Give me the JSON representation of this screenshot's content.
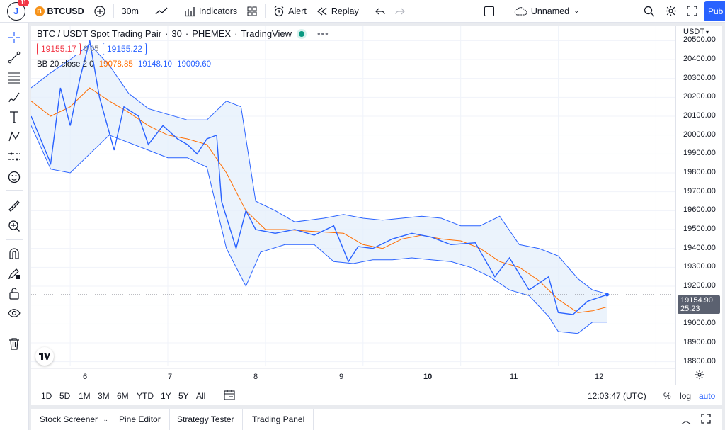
{
  "topbar": {
    "notification_count": "11",
    "avatar_letter": "J",
    "symbol": "BTCUSD",
    "coin_glyph": "B",
    "interval": "30m",
    "indicators_label": "Indicators",
    "alert_label": "Alert",
    "replay_label": "Replay",
    "layout_name": "Unnamed",
    "publish_label": "Pub"
  },
  "legend": {
    "title": "BTC / USDT Spot Trading Pair",
    "interval": "30",
    "exchange": "PHEMEX",
    "source": "TradingView",
    "sell_price": "19155.17",
    "spread": "0.05",
    "buy_price": "19155.22",
    "indicator_name": "BB 20 close 2 0",
    "bb_basis": "19078.85",
    "bb_upper": "19148.10",
    "bb_lower": "19009.60"
  },
  "price_axis": {
    "currency": "USDT",
    "ticks": [
      "20500.00",
      "20400.00",
      "20300.00",
      "20200.00",
      "20100.00",
      "20000.00",
      "19900.00",
      "19800.00",
      "19700.00",
      "19600.00",
      "19500.00",
      "19400.00",
      "19300.00",
      "19200.00",
      "19000.00",
      "18900.00",
      "18800.00"
    ],
    "current_price": "19154.90",
    "countdown": "25:23"
  },
  "time_axis": {
    "labels": [
      "6",
      "7",
      "8",
      "9",
      "10",
      "11",
      "12"
    ]
  },
  "range_bar": {
    "ranges": [
      "1D",
      "5D",
      "1M",
      "3M",
      "6M",
      "YTD",
      "1Y",
      "5Y",
      "All"
    ],
    "clock": "12:03:47 (UTC)",
    "percent": "%",
    "log": "log",
    "auto": "auto"
  },
  "bottom_tabs": [
    "Stock Screener",
    "Pine Editor",
    "Strategy Tester",
    "Trading Panel"
  ],
  "colors": {
    "price_line": "#2962ff",
    "band": "#2962ff",
    "basis": "#ff6d00",
    "band_fill": "#e3eefb"
  },
  "chart_data": {
    "type": "line",
    "x_range": [
      5.6,
      12.2
    ],
    "y_range": [
      18780,
      20580
    ],
    "price": [
      [
        5.6,
        20100
      ],
      [
        5.8,
        19850
      ],
      [
        5.9,
        20250
      ],
      [
        6.0,
        20050
      ],
      [
        6.1,
        20300
      ],
      [
        6.2,
        20500
      ],
      [
        6.3,
        20200
      ],
      [
        6.45,
        19920
      ],
      [
        6.55,
        20150
      ],
      [
        6.7,
        20100
      ],
      [
        6.8,
        19950
      ],
      [
        6.95,
        20050
      ],
      [
        7.1,
        19980
      ],
      [
        7.2,
        19950
      ],
      [
        7.3,
        19900
      ],
      [
        7.4,
        19980
      ],
      [
        7.5,
        20000
      ],
      [
        7.55,
        19650
      ],
      [
        7.7,
        19400
      ],
      [
        7.8,
        19600
      ],
      [
        7.9,
        19500
      ],
      [
        8.1,
        19480
      ],
      [
        8.3,
        19500
      ],
      [
        8.5,
        19470
      ],
      [
        8.7,
        19520
      ],
      [
        8.85,
        19330
      ],
      [
        8.95,
        19410
      ],
      [
        9.1,
        19400
      ],
      [
        9.3,
        19450
      ],
      [
        9.5,
        19480
      ],
      [
        9.7,
        19460
      ],
      [
        9.9,
        19420
      ],
      [
        10.15,
        19430
      ],
      [
        10.35,
        19250
      ],
      [
        10.5,
        19350
      ],
      [
        10.7,
        19180
      ],
      [
        10.9,
        19250
      ],
      [
        11.0,
        19060
      ],
      [
        11.15,
        19050
      ],
      [
        11.3,
        19120
      ],
      [
        11.5,
        19155
      ]
    ],
    "basis": [
      [
        5.6,
        20180
      ],
      [
        5.8,
        20100
      ],
      [
        6.0,
        20150
      ],
      [
        6.2,
        20250
      ],
      [
        6.4,
        20180
      ],
      [
        6.6,
        20120
      ],
      [
        6.8,
        20050
      ],
      [
        7.0,
        20000
      ],
      [
        7.2,
        19980
      ],
      [
        7.4,
        19950
      ],
      [
        7.6,
        19800
      ],
      [
        7.8,
        19600
      ],
      [
        8.0,
        19500
      ],
      [
        8.2,
        19500
      ],
      [
        8.5,
        19490
      ],
      [
        8.8,
        19480
      ],
      [
        9.0,
        19420
      ],
      [
        9.2,
        19400
      ],
      [
        9.4,
        19450
      ],
      [
        9.6,
        19470
      ],
      [
        9.8,
        19450
      ],
      [
        10.0,
        19440
      ],
      [
        10.2,
        19400
      ],
      [
        10.4,
        19330
      ],
      [
        10.6,
        19300
      ],
      [
        10.8,
        19230
      ],
      [
        11.0,
        19130
      ],
      [
        11.2,
        19060
      ],
      [
        11.35,
        19070
      ],
      [
        11.5,
        19090
      ]
    ],
    "upper": [
      [
        5.6,
        20250
      ],
      [
        5.8,
        20330
      ],
      [
        6.0,
        20400
      ],
      [
        6.2,
        20480
      ],
      [
        6.4,
        20370
      ],
      [
        6.6,
        20220
      ],
      [
        6.8,
        20140
      ],
      [
        7.0,
        20110
      ],
      [
        7.2,
        20080
      ],
      [
        7.4,
        20080
      ],
      [
        7.6,
        20180
      ],
      [
        7.75,
        20150
      ],
      [
        7.9,
        19650
      ],
      [
        8.1,
        19600
      ],
      [
        8.3,
        19540
      ],
      [
        8.6,
        19560
      ],
      [
        8.8,
        19580
      ],
      [
        9.0,
        19560
      ],
      [
        9.2,
        19550
      ],
      [
        9.4,
        19560
      ],
      [
        9.6,
        19570
      ],
      [
        9.8,
        19560
      ],
      [
        10.0,
        19520
      ],
      [
        10.2,
        19520
      ],
      [
        10.4,
        19570
      ],
      [
        10.6,
        19420
      ],
      [
        10.8,
        19400
      ],
      [
        11.0,
        19360
      ],
      [
        11.2,
        19240
      ],
      [
        11.35,
        19180
      ],
      [
        11.5,
        19160
      ]
    ],
    "lower": [
      [
        5.6,
        20050
      ],
      [
        5.8,
        19820
      ],
      [
        6.0,
        19800
      ],
      [
        6.2,
        19900
      ],
      [
        6.4,
        20000
      ],
      [
        6.6,
        19960
      ],
      [
        6.8,
        19920
      ],
      [
        7.0,
        19880
      ],
      [
        7.2,
        19880
      ],
      [
        7.4,
        19830
      ],
      [
        7.6,
        19400
      ],
      [
        7.8,
        19200
      ],
      [
        7.95,
        19380
      ],
      [
        8.2,
        19420
      ],
      [
        8.5,
        19420
      ],
      [
        8.7,
        19330
      ],
      [
        8.9,
        19320
      ],
      [
        9.1,
        19340
      ],
      [
        9.3,
        19340
      ],
      [
        9.5,
        19350
      ],
      [
        9.7,
        19340
      ],
      [
        9.9,
        19330
      ],
      [
        10.1,
        19300
      ],
      [
        10.3,
        19250
      ],
      [
        10.5,
        19180
      ],
      [
        10.7,
        19150
      ],
      [
        10.9,
        19040
      ],
      [
        11.0,
        18960
      ],
      [
        11.2,
        18950
      ],
      [
        11.35,
        19010
      ],
      [
        11.5,
        19010
      ]
    ]
  }
}
